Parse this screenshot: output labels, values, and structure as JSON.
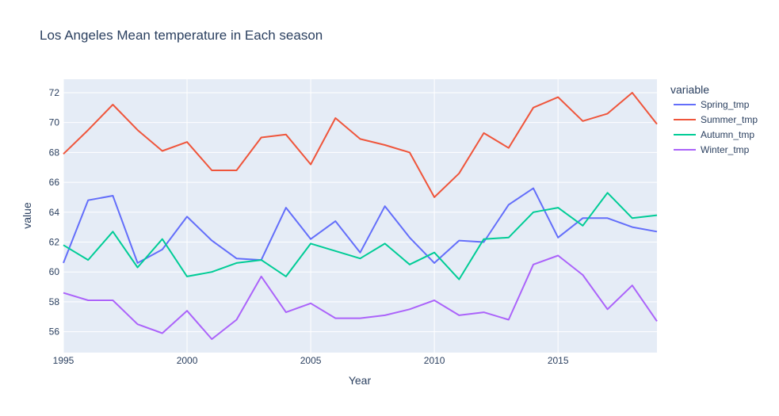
{
  "chart_data": {
    "type": "line",
    "title": "Los Angeles Mean temperature in Each season",
    "xlabel": "Year",
    "ylabel": "value",
    "legend_title": "variable",
    "legend_position": "right",
    "grid": true,
    "xlim": [
      1995,
      2019
    ],
    "ylim": [
      54.6,
      72.9
    ],
    "xticks": [
      1995,
      2000,
      2005,
      2010,
      2015
    ],
    "yticks": [
      56,
      58,
      60,
      62,
      64,
      66,
      68,
      70,
      72
    ],
    "x": [
      1995,
      1996,
      1997,
      1998,
      1999,
      2000,
      2001,
      2002,
      2003,
      2004,
      2005,
      2006,
      2007,
      2008,
      2009,
      2010,
      2011,
      2012,
      2013,
      2014,
      2015,
      2016,
      2017,
      2018,
      2019
    ],
    "series": [
      {
        "name": "Spring_tmp",
        "color": "#636efa",
        "values": [
          60.6,
          64.8,
          65.1,
          60.6,
          61.5,
          63.7,
          62.1,
          60.9,
          60.8,
          64.3,
          62.2,
          63.4,
          61.3,
          64.4,
          62.3,
          60.6,
          62.1,
          62.0,
          64.5,
          65.6,
          62.3,
          63.6,
          63.6,
          63.0,
          62.7
        ]
      },
      {
        "name": "Summer_tmp",
        "color": "#ef553b",
        "values": [
          67.9,
          69.5,
          71.2,
          69.5,
          68.1,
          68.7,
          66.8,
          66.8,
          69.0,
          69.2,
          67.2,
          70.3,
          68.9,
          68.5,
          68.0,
          65.0,
          66.6,
          69.3,
          68.3,
          71.0,
          71.7,
          70.1,
          70.6,
          72.0,
          69.9
        ]
      },
      {
        "name": "Autumn_tmp",
        "color": "#00cc96",
        "values": [
          61.8,
          60.8,
          62.7,
          60.3,
          62.2,
          59.7,
          60.0,
          60.6,
          60.8,
          59.7,
          61.9,
          61.4,
          60.9,
          61.9,
          60.5,
          61.3,
          59.5,
          62.2,
          62.3,
          64.0,
          64.3,
          63.1,
          65.3,
          63.6,
          63.8
        ]
      },
      {
        "name": "Winter_tmp",
        "color": "#ab63fa",
        "values": [
          58.6,
          58.1,
          58.1,
          56.5,
          55.9,
          57.4,
          55.5,
          56.8,
          59.7,
          57.3,
          57.9,
          56.9,
          56.9,
          57.1,
          57.5,
          58.1,
          57.1,
          57.3,
          56.8,
          60.5,
          61.1,
          59.8,
          57.5,
          59.1,
          56.7
        ]
      }
    ]
  }
}
